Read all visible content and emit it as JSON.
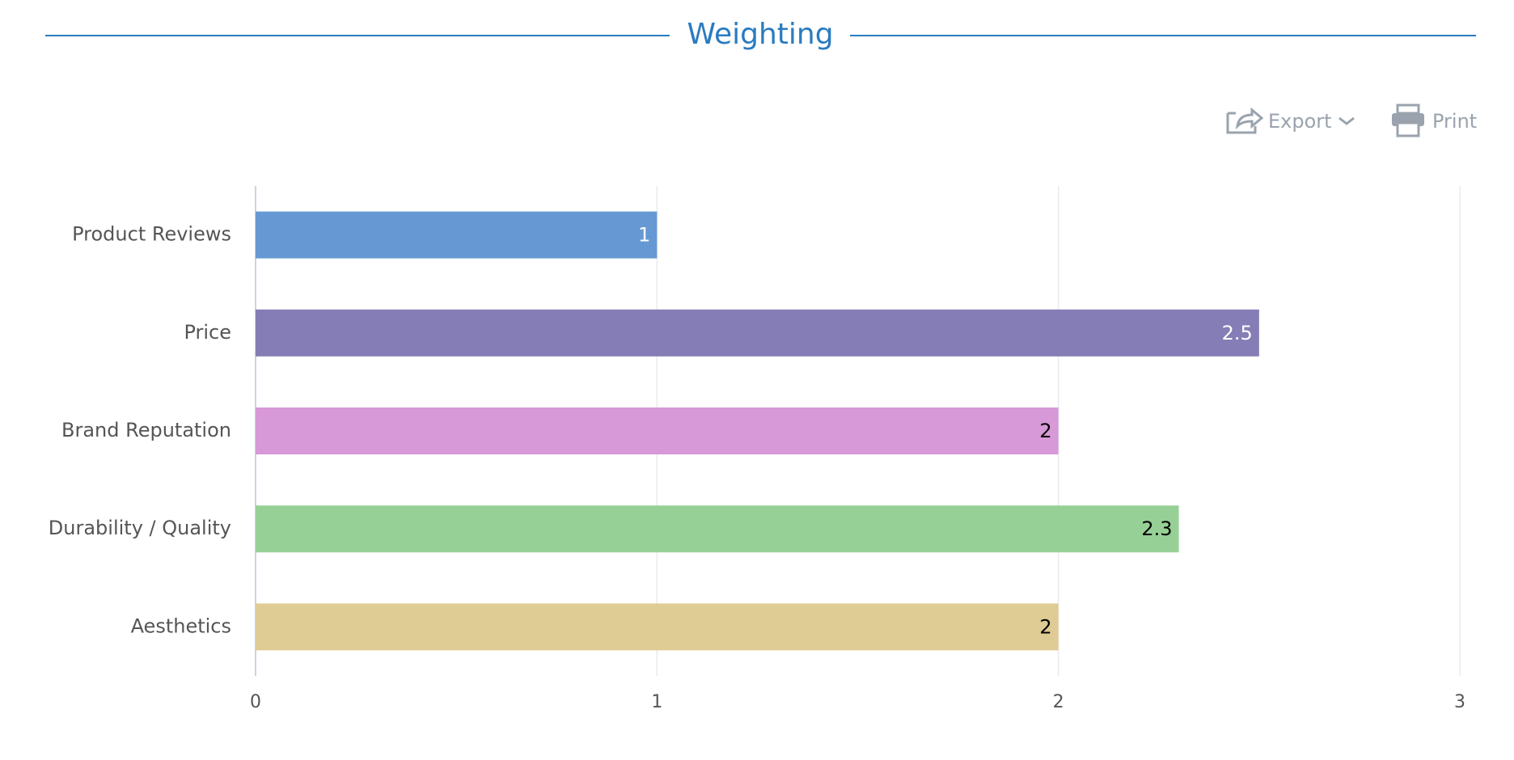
{
  "toolbar": {
    "export": "Export",
    "print": "Print"
  },
  "chart_data": {
    "type": "bar",
    "orientation": "horizontal",
    "title": "Weighting",
    "categories": [
      "Product Reviews",
      "Price",
      "Brand Reputation",
      "Durability / Quality",
      "Aesthetics"
    ],
    "values": [
      1,
      2.5,
      2,
      2.3,
      2
    ],
    "colors": [
      "#6699d3",
      "#857db5",
      "#d799d8",
      "#97d096",
      "#dfcb94"
    ],
    "value_label_colors": [
      "#ffffff",
      "#ffffff",
      "#000000",
      "#000000",
      "#000000"
    ],
    "xlim": [
      0,
      3
    ],
    "xticks": [
      0,
      1,
      2,
      3
    ],
    "grid": true
  }
}
